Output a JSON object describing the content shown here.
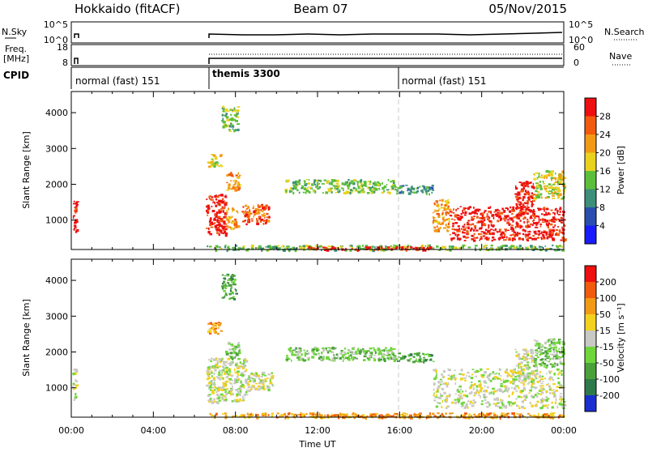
{
  "header": {
    "station": "Hokkaido (fitACF)",
    "beam": "Beam 07",
    "date": "05/Nov/2015"
  },
  "strip_panels": {
    "nsky": {
      "label": "N.Sky",
      "left_ticks": [
        "10^5",
        "10^0"
      ],
      "right_ticks": [
        "10^5",
        "10^0"
      ],
      "right_label": "N.Search"
    },
    "freq": {
      "label_line1": "Freq.",
      "label_line2": "[MHz]",
      "left_ticks": [
        "18",
        "8"
      ],
      "right_ticks": [
        "60",
        "0"
      ],
      "right_label": "Nave"
    },
    "cpid": {
      "label": "CPID",
      "segments": [
        {
          "label": "normal (fast) 151",
          "start_hour": 0.0
        },
        {
          "label": "themis 3300",
          "start_hour": 6.5
        },
        {
          "label": "normal (fast) 151",
          "start_hour": 16.0
        }
      ]
    }
  },
  "chart_data": [
    {
      "type": "heatmap",
      "panel": "power",
      "ylabel": "Slant Range [km]",
      "y_ticks": [
        "1000",
        "2000",
        "3000",
        "4000"
      ],
      "y_tick_values": [
        1000,
        2000,
        3000,
        4000
      ],
      "ylim": [
        180,
        4590
      ],
      "x_ticks": [
        "00:00",
        "04:00",
        "08:00",
        "12:00",
        "16:00",
        "20:00",
        "00:00"
      ],
      "x_tick_values": [
        0,
        4,
        8,
        12,
        16,
        20,
        24
      ],
      "xlim": [
        0,
        24
      ],
      "colorbar": {
        "label": "Power [dB]",
        "ticks": [
          "4",
          "8",
          "12",
          "16",
          "20",
          "24",
          "28"
        ],
        "colors": [
          "#1a1aff",
          "#2a4fb0",
          "#3d8f7a",
          "#5cbf3a",
          "#e8d21e",
          "#f29a14",
          "#f25a0e",
          "#ee1010"
        ]
      },
      "regions": [
        {
          "t0": 0.05,
          "t1": 0.25,
          "r0": 650,
          "r1": 1550,
          "level": 7
        },
        {
          "t0": 6.55,
          "t1": 7.5,
          "r0": 600,
          "r1": 1750,
          "level": 7
        },
        {
          "t0": 7.5,
          "t1": 8.1,
          "r0": 750,
          "r1": 1350,
          "level": 5
        },
        {
          "t0": 8.3,
          "t1": 9.6,
          "r0": 900,
          "r1": 1450,
          "level": 6
        },
        {
          "t0": 7.5,
          "t1": 8.2,
          "r0": 1850,
          "r1": 2400,
          "level": 5
        },
        {
          "t0": 6.6,
          "t1": 7.3,
          "r0": 2500,
          "r1": 2850,
          "level": 4
        },
        {
          "t0": 7.3,
          "t1": 8.1,
          "r0": 3500,
          "r1": 4200,
          "level": 3
        },
        {
          "t0": 10.4,
          "t1": 15.8,
          "r0": 1780,
          "r1": 2150,
          "level": 3
        },
        {
          "t0": 15.8,
          "t1": 17.6,
          "r0": 1750,
          "r1": 2000,
          "level": 2
        },
        {
          "t0": 17.6,
          "t1": 18.4,
          "r0": 700,
          "r1": 1600,
          "level": 5
        },
        {
          "t0": 18.4,
          "t1": 24.0,
          "r0": 450,
          "r1": 1400,
          "level": 7
        },
        {
          "t0": 21.6,
          "t1": 22.5,
          "r0": 1100,
          "r1": 2100,
          "level": 7
        },
        {
          "t0": 22.5,
          "t1": 24.0,
          "r0": 1600,
          "r1": 2400,
          "level": 4
        },
        {
          "t0": 6.5,
          "t1": 24.0,
          "r0": 180,
          "r1": 320,
          "level": 3
        },
        {
          "t0": 11.5,
          "t1": 17.5,
          "r0": 180,
          "r1": 280,
          "level": 7
        }
      ]
    },
    {
      "type": "heatmap",
      "panel": "velocity",
      "ylabel": "Slant Range [km]",
      "y_ticks": [
        "1000",
        "2000",
        "3000",
        "4000"
      ],
      "y_tick_values": [
        1000,
        2000,
        3000,
        4000
      ],
      "ylim": [
        180,
        4590
      ],
      "x_ticks": [
        "00:00",
        "04:00",
        "08:00",
        "12:00",
        "16:00",
        "20:00",
        "00:00"
      ],
      "x_tick_values": [
        0,
        4,
        8,
        12,
        16,
        20,
        24
      ],
      "xlim": [
        0,
        24
      ],
      "xlabel": "Time UT",
      "colorbar": {
        "label": "Velocity [m s⁻¹]",
        "ticks": [
          "200",
          "100",
          "50",
          "15",
          "-15",
          "-50",
          "-100",
          "-200"
        ],
        "colors": [
          "#1a2fd0",
          "#2e7a4a",
          "#4aa13a",
          "#6fd63a",
          "#c8c8c4",
          "#f2d21e",
          "#f29a14",
          "#f25a0e",
          "#ee1010"
        ]
      },
      "regions": [
        {
          "t0": 0.05,
          "t1": 0.25,
          "r0": 650,
          "r1": 1550,
          "level": 4
        },
        {
          "t0": 6.55,
          "t1": 8.5,
          "r0": 600,
          "r1": 1850,
          "level": 4
        },
        {
          "t0": 8.5,
          "t1": 9.8,
          "r0": 950,
          "r1": 1450,
          "level": 4
        },
        {
          "t0": 7.5,
          "t1": 8.2,
          "r0": 1850,
          "r1": 2300,
          "level": 3
        },
        {
          "t0": 6.6,
          "t1": 7.3,
          "r0": 2500,
          "r1": 2850,
          "level": 6
        },
        {
          "t0": 7.3,
          "t1": 8.0,
          "r0": 3500,
          "r1": 4200,
          "level": 2
        },
        {
          "t0": 10.4,
          "t1": 15.8,
          "r0": 1780,
          "r1": 2150,
          "level": 3
        },
        {
          "t0": 15.8,
          "t1": 17.6,
          "r0": 1750,
          "r1": 2000,
          "level": 2
        },
        {
          "t0": 17.6,
          "t1": 24.0,
          "r0": 450,
          "r1": 1550,
          "level": 4
        },
        {
          "t0": 21.6,
          "t1": 22.5,
          "r0": 1100,
          "r1": 2100,
          "level": 4
        },
        {
          "t0": 22.5,
          "t1": 24.0,
          "r0": 1600,
          "r1": 2400,
          "level": 3
        },
        {
          "t0": 6.5,
          "t1": 24.0,
          "r0": 180,
          "r1": 320,
          "level": 6
        },
        {
          "t0": 11.5,
          "t1": 17.5,
          "r0": 180,
          "r1": 280,
          "level": 6
        }
      ]
    }
  ]
}
